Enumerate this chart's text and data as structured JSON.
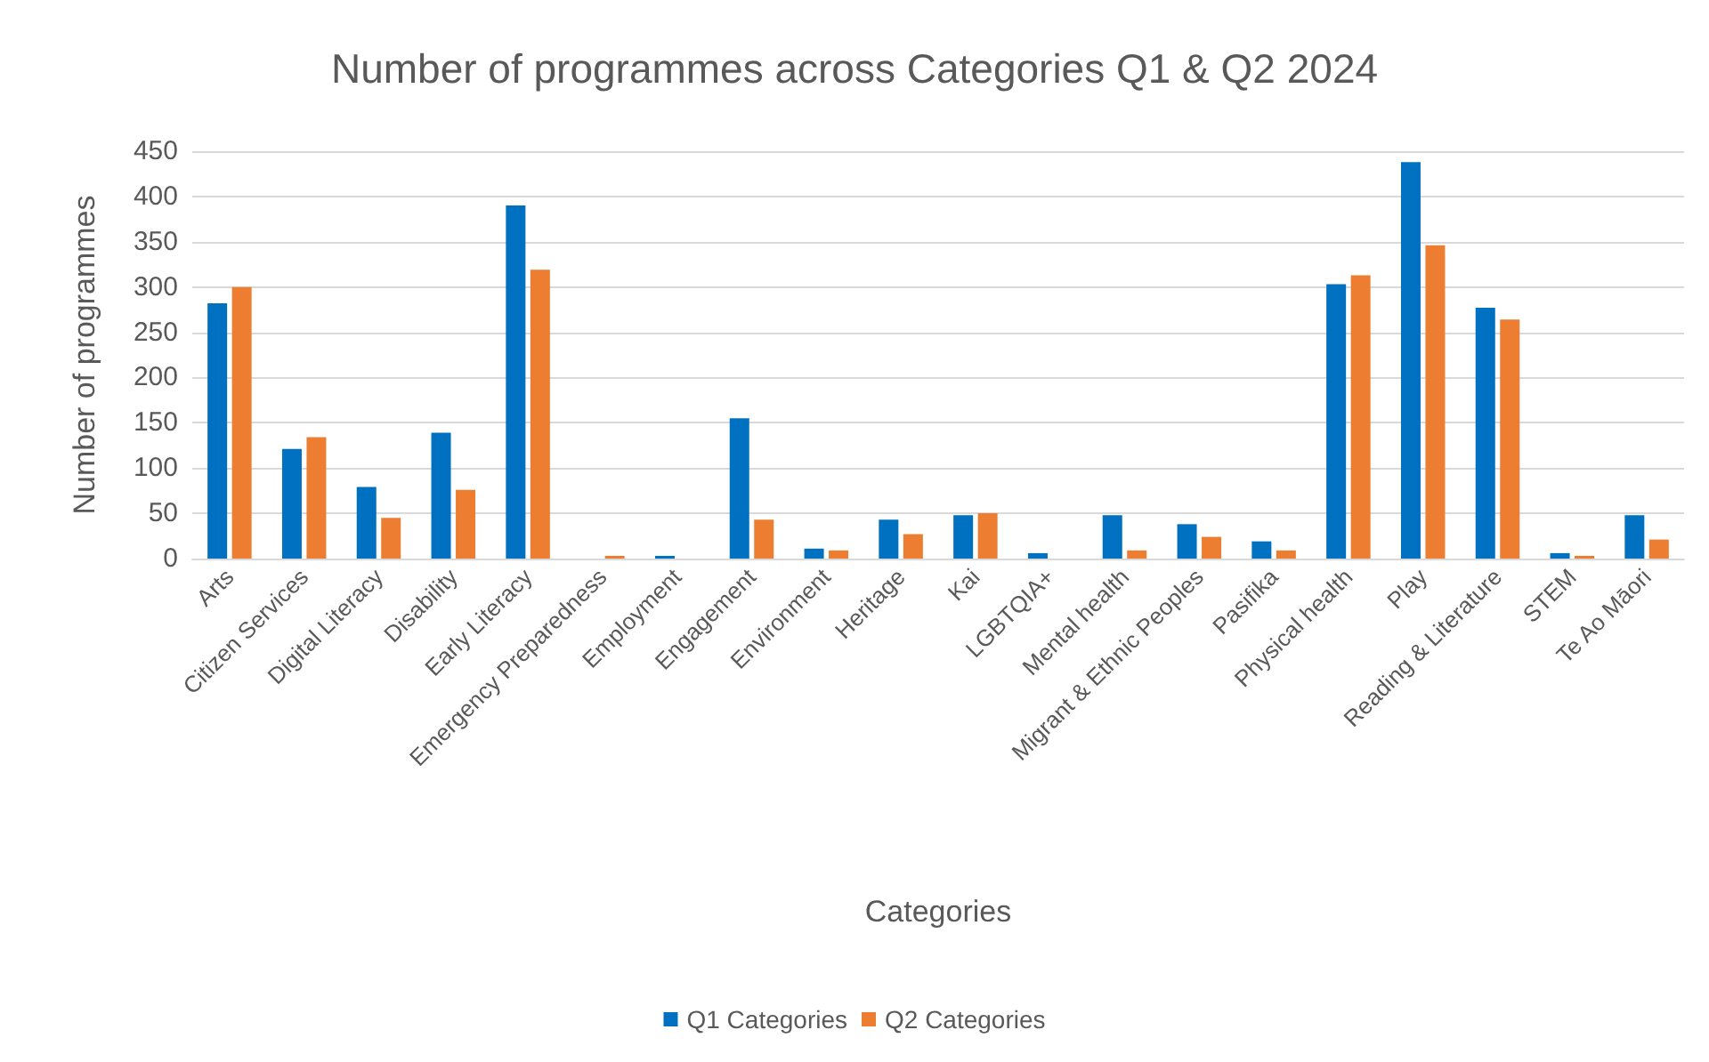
{
  "chart_data": {
    "type": "bar",
    "title": "Number of programmes across Categories Q1 & Q2 2024",
    "xlabel": "Categories",
    "ylabel": "Number of programmes",
    "categories": [
      "Arts",
      "Citizen Services",
      "Digital Literacy",
      "Disability",
      "Early Literacy",
      "Emergency Preparedness",
      "Employment",
      "Engagement",
      "Environment",
      "Heritage",
      "Kai",
      "LGBTQIA+",
      "Mental health",
      "Migrant & Ethnic Peoples",
      "Pasifika",
      "Physical health",
      "Play",
      "Reading & Literature",
      "STEM",
      "Te Ao Māori"
    ],
    "series": [
      {
        "name": "Q1 Categories",
        "color": "#0070c0",
        "values": [
          282,
          121,
          79,
          139,
          390,
          0,
          3,
          155,
          11,
          43,
          48,
          6,
          48,
          38,
          19,
          303,
          438,
          277,
          6,
          48
        ]
      },
      {
        "name": "Q2 Categories",
        "color": "#ed7d31",
        "values": [
          300,
          134,
          45,
          76,
          319,
          3,
          0,
          43,
          9,
          27,
          50,
          0,
          9,
          24,
          9,
          313,
          346,
          264,
          3,
          21
        ]
      }
    ],
    "ylim": [
      0,
      450
    ],
    "yticks": [
      0,
      50,
      100,
      150,
      200,
      250,
      300,
      350,
      400,
      450
    ],
    "grid": "y",
    "legend": "bottom"
  }
}
